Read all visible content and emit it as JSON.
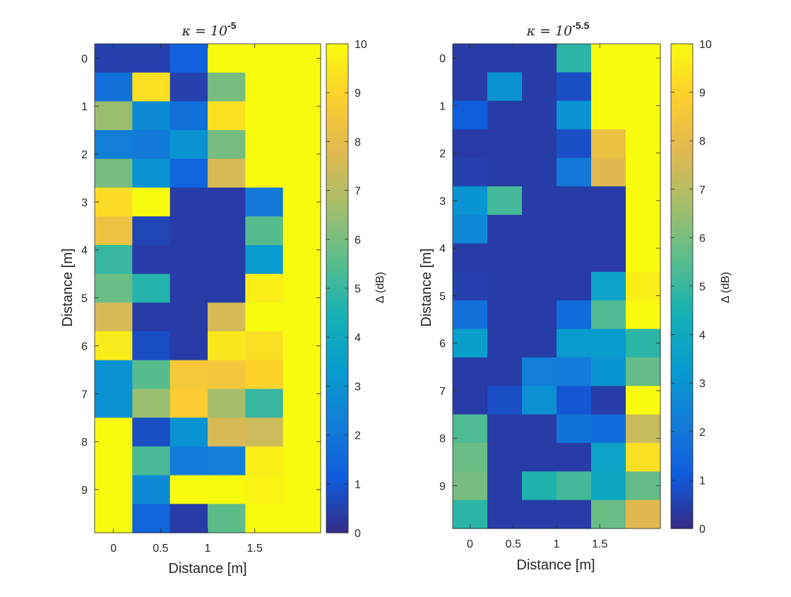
{
  "figure": {
    "colorbar_ticks": [
      "0",
      "1",
      "2",
      "3",
      "4",
      "5",
      "6",
      "7",
      "8",
      "9",
      "10"
    ],
    "colorbar_label": "Δ (dB)",
    "colormap": "parula"
  },
  "chart_data": [
    {
      "type": "heatmap",
      "title_prefix": "κ = 10",
      "title_exponent": "-5",
      "xlabel": "Distance [m]",
      "ylabel": "Distance [m]",
      "x_tick_labels": [
        "0",
        "0.5",
        "1",
        "1.5"
      ],
      "y_tick_labels": [
        "0",
        "1",
        "2",
        "3",
        "4",
        "5",
        "6",
        "7",
        "8",
        "9"
      ],
      "x_ticks": [
        0,
        0.5,
        1,
        1.5
      ],
      "y_ticks": [
        0,
        1,
        2,
        3,
        4,
        5,
        6,
        7,
        8,
        9
      ],
      "x_centers": [
        0,
        0.4,
        0.8,
        1.2,
        1.6,
        2.0
      ],
      "y_centers": [
        0,
        0.6,
        1.2,
        1.8,
        2.4,
        3.0,
        3.6,
        4.2,
        4.8,
        5.4,
        6.0,
        6.6,
        7.2,
        7.8,
        8.4,
        9.0,
        9.6
      ],
      "xlim": [
        -0.2,
        2.2
      ],
      "ylim": [
        -0.3,
        9.9
      ],
      "clim": [
        0,
        10
      ],
      "colorbar_label": "Δ (dB)",
      "z": [
        [
          0.5,
          0.5,
          1.3,
          10,
          10,
          10
        ],
        [
          1.8,
          9.3,
          0.5,
          6.0,
          10,
          10
        ],
        [
          6.5,
          2.7,
          1.8,
          9.3,
          10,
          10
        ],
        [
          2.3,
          2.1,
          3.0,
          6.0,
          10,
          10
        ],
        [
          6.0,
          3.0,
          1.4,
          7.6,
          10,
          10
        ],
        [
          9.2,
          10,
          0.4,
          0.4,
          2.1,
          10
        ],
        [
          8.3,
          0.6,
          0.4,
          0.4,
          5.5,
          10
        ],
        [
          5.0,
          0.4,
          0.4,
          0.4,
          3.3,
          10
        ],
        [
          5.8,
          4.7,
          0.4,
          0.4,
          9.7,
          10
        ],
        [
          7.6,
          0.4,
          0.4,
          7.6,
          10,
          10
        ],
        [
          9.6,
          0.8,
          0.4,
          9.5,
          9.3,
          10
        ],
        [
          3.0,
          5.5,
          8.6,
          8.5,
          9.0,
          10
        ],
        [
          3.0,
          6.5,
          8.8,
          6.7,
          5.0,
          10
        ],
        [
          10,
          0.8,
          3.0,
          7.6,
          7.4,
          10
        ],
        [
          10,
          5.3,
          2.2,
          2.3,
          9.7,
          10
        ],
        [
          10,
          2.7,
          10,
          10,
          9.8,
          10
        ],
        [
          10,
          1.4,
          0.4,
          5.6,
          10,
          10
        ]
      ]
    },
    {
      "type": "heatmap",
      "title_prefix": "κ = 10",
      "title_exponent": "-5.5",
      "xlabel": "Distance [m]",
      "ylabel": "Distance [m]",
      "x_tick_labels": [
        "0",
        "0.5",
        "1",
        "1.5"
      ],
      "y_tick_labels": [
        "0",
        "1",
        "2",
        "3",
        "4",
        "5",
        "6",
        "7",
        "8",
        "9"
      ],
      "x_ticks": [
        0,
        0.5,
        1,
        1.5
      ],
      "y_ticks": [
        0,
        1,
        2,
        3,
        4,
        5,
        6,
        7,
        8,
        9
      ],
      "x_centers": [
        0,
        0.4,
        0.8,
        1.2,
        1.6,
        2.0
      ],
      "y_centers": [
        0,
        0.6,
        1.2,
        1.8,
        2.4,
        3.0,
        3.6,
        4.2,
        4.8,
        5.4,
        6.0,
        6.6,
        7.2,
        7.8,
        8.4,
        9.0,
        9.6
      ],
      "xlim": [
        -0.2,
        2.2
      ],
      "ylim": [
        -0.3,
        9.9
      ],
      "clim": [
        0,
        10
      ],
      "colorbar_label": "Δ (dB)",
      "z": [
        [
          0.4,
          0.4,
          0.4,
          4.8,
          10,
          10
        ],
        [
          0.4,
          3.0,
          0.4,
          0.8,
          10,
          10
        ],
        [
          1.2,
          0.4,
          0.4,
          3.0,
          10,
          10
        ],
        [
          0.4,
          0.4,
          0.4,
          0.8,
          8.2,
          10
        ],
        [
          0.5,
          0.4,
          0.4,
          2.1,
          7.8,
          10
        ],
        [
          3.1,
          5.2,
          0.4,
          0.4,
          0.4,
          10
        ],
        [
          2.6,
          0.4,
          0.4,
          0.4,
          0.4,
          10
        ],
        [
          0.4,
          0.4,
          0.4,
          0.4,
          0.4,
          10
        ],
        [
          0.5,
          0.4,
          0.4,
          0.4,
          3.7,
          9.7
        ],
        [
          1.8,
          0.4,
          0.4,
          1.7,
          5.4,
          10
        ],
        [
          3.5,
          0.4,
          0.4,
          3.3,
          3.4,
          4.8
        ],
        [
          0.4,
          0.4,
          2.3,
          2.2,
          3.1,
          5.7
        ],
        [
          0.4,
          0.8,
          2.9,
          1.0,
          0.4,
          10
        ],
        [
          5.4,
          0.4,
          0.4,
          1.9,
          1.7,
          7.3
        ],
        [
          5.8,
          0.4,
          0.4,
          0.4,
          3.7,
          9.3
        ],
        [
          6.0,
          0.4,
          4.6,
          5.2,
          3.9,
          5.7
        ],
        [
          4.8,
          0.4,
          0.4,
          0.4,
          5.8,
          7.8
        ]
      ]
    }
  ]
}
